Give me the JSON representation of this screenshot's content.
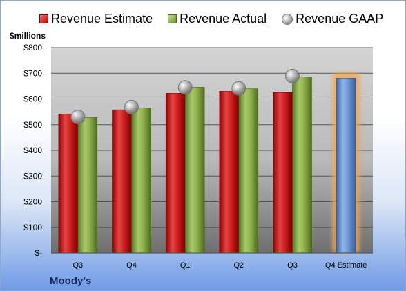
{
  "legend": {
    "estimate_label": "Revenue Estimate",
    "actual_label": "Revenue Actual",
    "gaap_label": "Revenue GAAP"
  },
  "unit_label": "$millions",
  "brand": "Moody's",
  "colors": {
    "estimate": "#c41a1a",
    "actual": "#8cae4a",
    "gaap": "#a8a8a8",
    "forecast": "#6f98d6",
    "forecast_glow": "#f5a64a"
  },
  "chart_data": {
    "type": "bar",
    "title": "",
    "xlabel": "",
    "ylabel": "$millions",
    "ylim": [
      0,
      800
    ],
    "yticks": [
      0,
      100,
      200,
      300,
      400,
      500,
      600,
      700,
      800
    ],
    "ytick_labels": [
      "$-",
      "$100",
      "$200",
      "$300",
      "$400",
      "$500",
      "$600",
      "$700",
      "$800"
    ],
    "categories": [
      "Q3",
      "Q4",
      "Q1",
      "Q2",
      "Q3",
      "Q4 Estimate"
    ],
    "series": [
      {
        "name": "Revenue Estimate",
        "values": [
          541,
          558,
          622,
          630,
          625,
          null
        ]
      },
      {
        "name": "Revenue Actual",
        "values": [
          528,
          565,
          646,
          640,
          686,
          null
        ]
      },
      {
        "name": "Revenue GAAP",
        "values": [
          530,
          568,
          645,
          641,
          689,
          null
        ]
      },
      {
        "name": "Q4 Estimate",
        "values": [
          null,
          null,
          null,
          null,
          null,
          681
        ]
      }
    ],
    "grid": true,
    "legend_position": "top"
  }
}
